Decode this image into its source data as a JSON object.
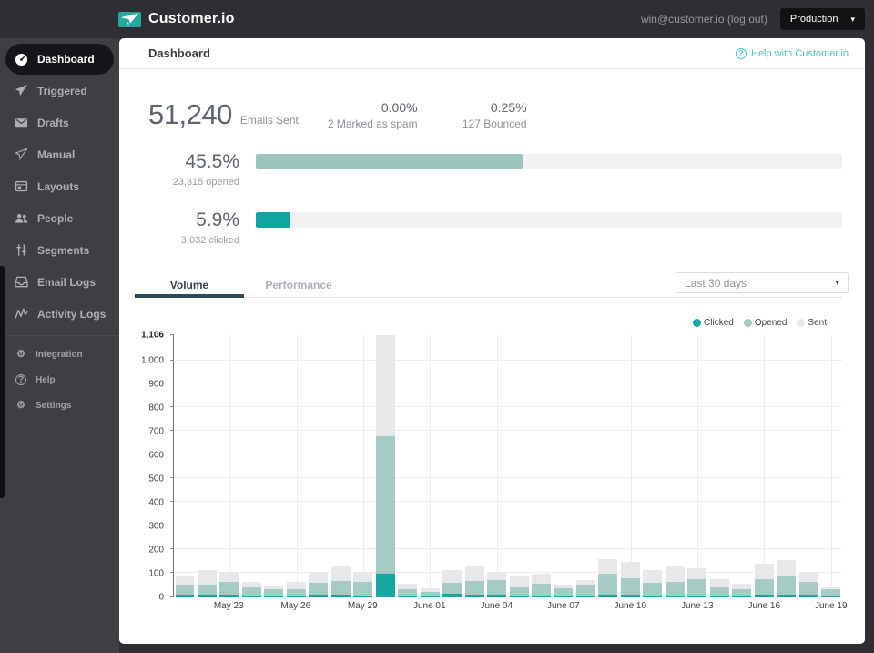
{
  "topbar": {
    "brand": "Customer.io",
    "account": "win@customer.io (log out)",
    "environment": "Production"
  },
  "sidebar": {
    "items": [
      {
        "id": "dashboard",
        "label": "Dashboard",
        "icon": "gauge-icon",
        "active": true
      },
      {
        "id": "triggered",
        "label": "Triggered",
        "icon": "paper-plane-icon"
      },
      {
        "id": "drafts",
        "label": "Drafts",
        "icon": "envelope-icon"
      },
      {
        "id": "manual",
        "label": "Manual",
        "icon": "paper-plane-outline-icon"
      },
      {
        "id": "layouts",
        "label": "Layouts",
        "icon": "layout-icon"
      },
      {
        "id": "people",
        "label": "People",
        "icon": "people-icon"
      },
      {
        "id": "segments",
        "label": "Segments",
        "icon": "sliders-icon"
      },
      {
        "id": "email-logs",
        "label": "Email Logs",
        "icon": "inbox-icon"
      },
      {
        "id": "activity-logs",
        "label": "Activity Logs",
        "icon": "activity-icon"
      },
      {
        "id": "integration",
        "label": "Integration",
        "icon": "gear-icon",
        "small": true,
        "divider_before": true
      },
      {
        "id": "help",
        "label": "Help",
        "icon": "question-icon",
        "small": true
      },
      {
        "id": "settings",
        "label": "Settings",
        "icon": "gear-icon",
        "small": true
      }
    ]
  },
  "main": {
    "title": "Dashboard",
    "help_link": "Help with Customer.io"
  },
  "stats": {
    "emails_sent_value": "51,240",
    "emails_sent_label": "Emails Sent",
    "items": [
      {
        "value": "0.00%",
        "label": "2 Marked as spam"
      },
      {
        "value": "0.25%",
        "label": "127 Bounced"
      }
    ]
  },
  "progress": {
    "rows": [
      {
        "id": "opened",
        "pct": "45.5%",
        "sub": "23,315 opened",
        "percent": 45.5,
        "color": "#9cc4bd"
      },
      {
        "id": "clicked",
        "pct": "5.9%",
        "sub": "3,032 clicked",
        "percent": 5.9,
        "color": "#0fa5a0"
      }
    ],
    "track_color": "#f0f2f2"
  },
  "tabs": [
    {
      "label": "Volume",
      "active": true
    },
    {
      "label": "Performance",
      "active": false
    }
  ],
  "date_range": "Last 30 days",
  "colors": {
    "accent_teal": "#0fa5a0",
    "muted_teal": "#9cc4bd",
    "link_teal": "#4cc3c3",
    "sidebar_bg": "#3e3e43",
    "topbar_bg": "#2e2e33",
    "active_pill": "#16161a"
  },
  "chart_data": {
    "type": "bar",
    "stacked": true,
    "grid": true,
    "legend_position": "top-right",
    "ylim": [
      0,
      1106
    ],
    "y_ticks": [
      0,
      100,
      200,
      300,
      400,
      500,
      600,
      700,
      800,
      900,
      1000
    ],
    "y_max_label": "1,106",
    "x": [
      "May 21",
      "May 22",
      "May 23",
      "May 24",
      "May 25",
      "May 26",
      "May 27",
      "May 28",
      "May 29",
      "May 30",
      "May 31",
      "June 01",
      "June 02",
      "June 03",
      "June 04",
      "June 05",
      "June 06",
      "June 07",
      "June 08",
      "June 09",
      "June 10",
      "June 11",
      "June 12",
      "June 13",
      "June 14",
      "June 15",
      "June 16",
      "June 17",
      "June 18",
      "June 19"
    ],
    "x_tick_labels": [
      "May 23",
      "May 26",
      "May 29",
      "June 01",
      "June 04",
      "June 07",
      "June 10",
      "June 13",
      "June 16",
      "June 19"
    ],
    "series": [
      {
        "name": "Clicked",
        "color": "#16a7a0",
        "values": [
          6,
          7,
          7,
          5,
          4,
          5,
          7,
          7,
          5,
          95,
          3,
          3,
          10,
          7,
          7,
          5,
          5,
          4,
          5,
          6,
          8,
          4,
          5,
          5,
          4,
          3,
          8,
          8,
          6,
          2
        ]
      },
      {
        "name": "Opened",
        "color": "#a5cbc4",
        "values": [
          45,
          45,
          55,
          35,
          28,
          27,
          50,
          60,
          55,
          585,
          28,
          15,
          48,
          58,
          62,
          38,
          50,
          32,
          45,
          90,
          68,
          52,
          55,
          70,
          34,
          28,
          64,
          78,
          56,
          29
        ]
      },
      {
        "name": "Sent",
        "color": "#e6e8e9",
        "values": [
          33,
          58,
          43,
          22,
          14,
          30,
          48,
          63,
          45,
          426,
          24,
          18,
          52,
          65,
          34,
          47,
          41,
          14,
          20,
          64,
          69,
          57,
          70,
          45,
          34,
          23,
          67,
          69,
          43,
          10
        ]
      }
    ]
  }
}
